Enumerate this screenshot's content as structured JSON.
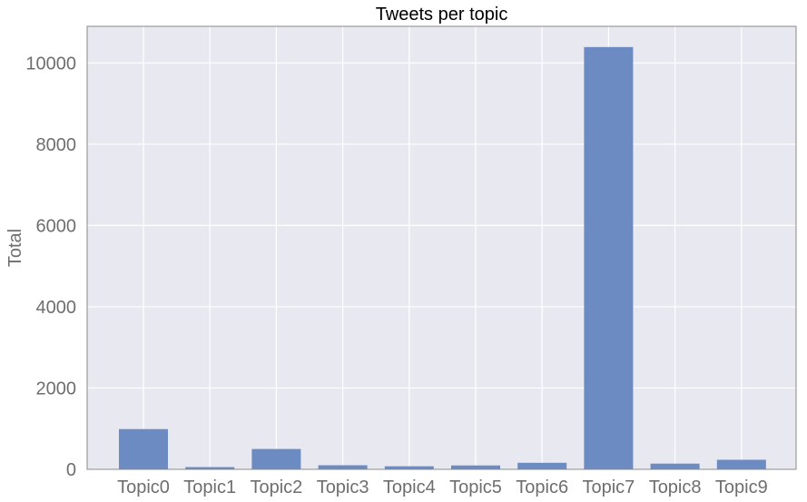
{
  "chart_data": {
    "type": "bar",
    "title": "Tweets per topic",
    "xlabel": "",
    "ylabel": "Total",
    "categories": [
      "Topic0",
      "Topic1",
      "Topic2",
      "Topic3",
      "Topic4",
      "Topic5",
      "Topic6",
      "Topic7",
      "Topic8",
      "Topic9"
    ],
    "values": [
      990,
      55,
      500,
      100,
      75,
      95,
      160,
      10390,
      140,
      235
    ],
    "ylim": [
      0,
      10900
    ],
    "yticks": [
      0,
      2000,
      4000,
      6000,
      8000,
      10000
    ],
    "ytick_labels": [
      "0",
      "2000",
      "4000",
      "6000",
      "8000",
      "10000"
    ],
    "grid": true,
    "legend": "none",
    "colors": {
      "bar": "#6b8bc2",
      "plot_background": "#e8e8f0",
      "grid": "#ffffff",
      "frame": "#8a8a8a"
    }
  }
}
